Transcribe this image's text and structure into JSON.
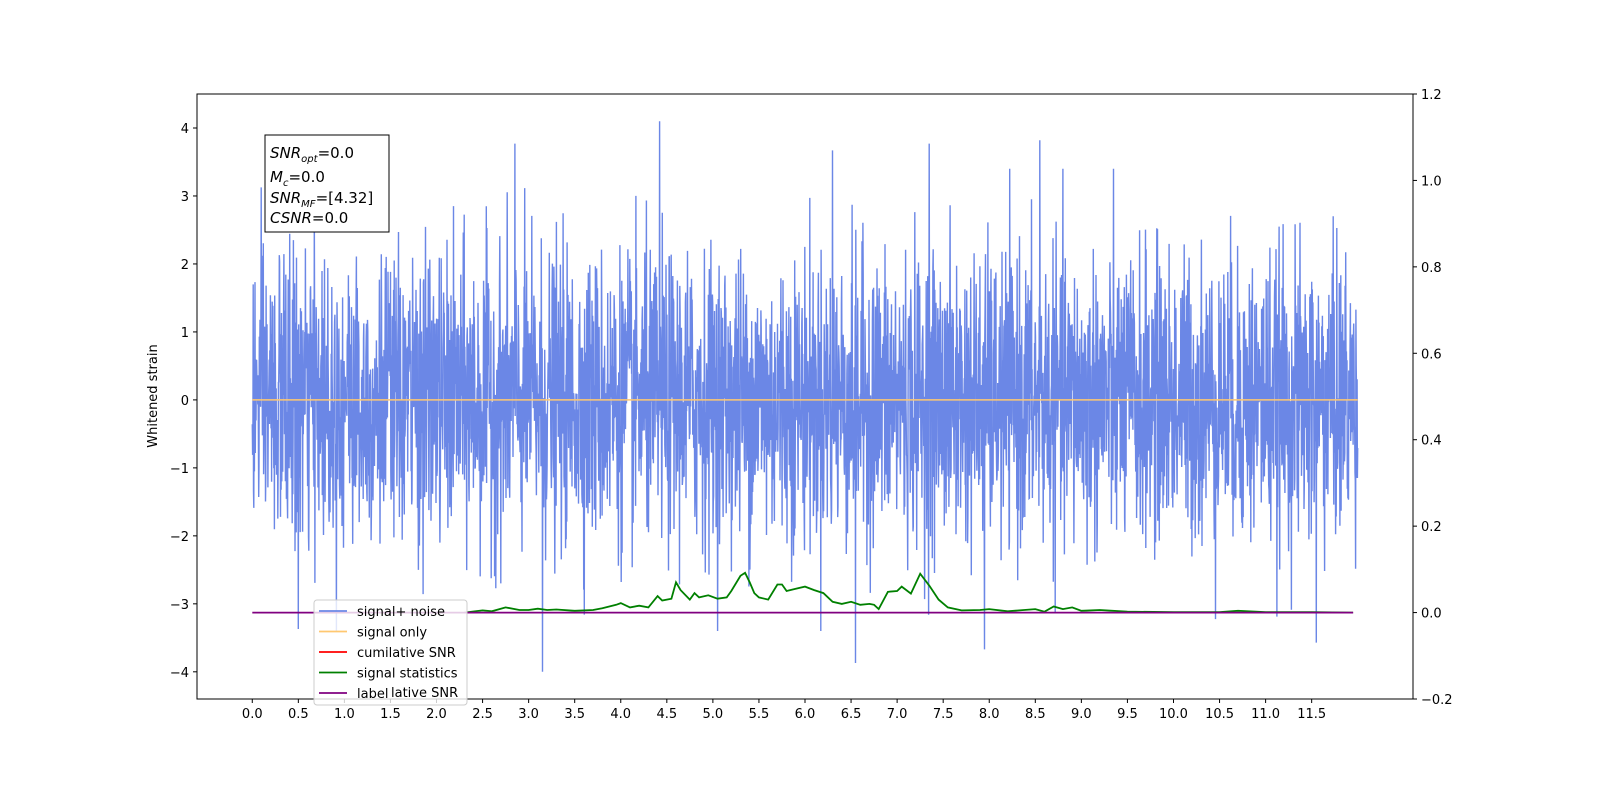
{
  "chart_data": {
    "type": "line",
    "ylabel": "Whitened strain",
    "xlabel": "",
    "xlim": [
      -0.6,
      12.6
    ],
    "ylim": [
      -4.4,
      4.5
    ],
    "y2lim": [
      -0.2,
      1.2
    ],
    "x_ticks": [
      "0.0",
      "0.5",
      "1.0",
      "1.5",
      "2.0",
      "2.5",
      "3.0",
      "3.5",
      "4.0",
      "4.5",
      "5.0",
      "5.5",
      "6.0",
      "6.5",
      "7.0",
      "7.5",
      "8.0",
      "8.5",
      "9.0",
      "9.5",
      "10.0",
      "10.5",
      "11.0",
      "11.5"
    ],
    "y_ticks": [
      "−4",
      "−3",
      "−2",
      "−1",
      "0",
      "1",
      "2",
      "3",
      "4"
    ],
    "y2_ticks": [
      "−0.2",
      "0.0",
      "0.2",
      "0.4",
      "0.6",
      "0.8",
      "1.0",
      "1.2"
    ],
    "annotation": {
      "snr_opt": {
        "label": "SNR",
        "sub": "opt",
        "value": "=0.0"
      },
      "m_c": {
        "label": "M",
        "sub": "c",
        "value": "=0.0"
      },
      "snr_mf": {
        "label": "SNR",
        "sub": "MF",
        "value": "=[4.32]"
      },
      "csnr": {
        "label": "CSNR",
        "sub": "",
        "value": "=0.0"
      }
    },
    "legend": {
      "placement": "lower-left",
      "entries": [
        {
          "label": "signal+ noise",
          "color": "#6b87e6"
        },
        {
          "label": "signal only",
          "color": "#ffc870"
        },
        {
          "label": "cumilative SNR",
          "color": "#ff0000"
        },
        {
          "label": "signal statistics",
          "color": "#008000"
        },
        {
          "label": "label",
          "color": "#800080"
        }
      ],
      "hidden_text": "lative SNR"
    },
    "series": [
      {
        "name": "signal+ noise",
        "axis": "left",
        "color": "#6b87e6",
        "x_range": [
          0.0,
          12.0
        ],
        "amplitude_envelope": [
          -4.0,
          4.1
        ],
        "notable_peaks": [
          {
            "x": 4.42,
            "y": 4.1
          },
          {
            "x": 2.85,
            "y": 3.77
          },
          {
            "x": 8.55,
            "y": 3.82
          },
          {
            "x": 7.35,
            "y": 3.77
          },
          {
            "x": 6.3,
            "y": 3.67
          },
          {
            "x": 3.15,
            "y": -4.0
          },
          {
            "x": 6.55,
            "y": -3.87
          },
          {
            "x": 7.95,
            "y": -3.67
          },
          {
            "x": 11.55,
            "y": -3.57
          },
          {
            "x": 0.5,
            "y": -3.37
          }
        ]
      },
      {
        "name": "signal only",
        "axis": "left",
        "color": "#ffc870",
        "x": [
          0.0,
          12.0
        ],
        "y": [
          0.0,
          0.0
        ]
      },
      {
        "name": "signal statistics",
        "axis": "right",
        "color": "#008000",
        "x": [
          2.3,
          2.5,
          2.6,
          2.75,
          2.9,
          3.0,
          3.1,
          3.2,
          3.3,
          3.5,
          3.7,
          3.8,
          3.95,
          4.0,
          4.1,
          4.2,
          4.3,
          4.4,
          4.45,
          4.55,
          4.6,
          4.65,
          4.75,
          4.8,
          4.85,
          4.95,
          5.05,
          5.15,
          5.2,
          5.3,
          5.35,
          5.4,
          5.45,
          5.5,
          5.6,
          5.7,
          5.75,
          5.8,
          5.9,
          6.0,
          6.1,
          6.2,
          6.3,
          6.4,
          6.5,
          6.6,
          6.7,
          6.75,
          6.8,
          6.9,
          7.0,
          7.05,
          7.15,
          7.25,
          7.35,
          7.45,
          7.55,
          7.7,
          7.9,
          8.0,
          8.2,
          8.5,
          8.6,
          8.7,
          8.8,
          8.9,
          9.0,
          9.2,
          9.5,
          10.0,
          10.5,
          10.7,
          11.0,
          11.5,
          11.95
        ],
        "y": [
          0.0,
          0.005,
          0.003,
          0.012,
          0.006,
          0.006,
          0.009,
          0.006,
          0.007,
          0.004,
          0.006,
          0.01,
          0.018,
          0.022,
          0.012,
          0.016,
          0.012,
          0.038,
          0.028,
          0.032,
          0.07,
          0.052,
          0.03,
          0.045,
          0.035,
          0.04,
          0.032,
          0.035,
          0.05,
          0.085,
          0.092,
          0.07,
          0.045,
          0.035,
          0.03,
          0.065,
          0.065,
          0.05,
          0.055,
          0.06,
          0.052,
          0.045,
          0.025,
          0.02,
          0.025,
          0.018,
          0.02,
          0.018,
          0.008,
          0.048,
          0.05,
          0.06,
          0.044,
          0.09,
          0.062,
          0.03,
          0.012,
          0.005,
          0.006,
          0.008,
          0.003,
          0.008,
          0.002,
          0.014,
          0.008,
          0.012,
          0.004,
          0.006,
          0.002,
          0.001,
          0.001,
          0.004,
          0.001,
          0.001,
          0.0
        ]
      },
      {
        "name": "label",
        "axis": "right",
        "color": "#800080",
        "x": [
          0.0,
          11.95
        ],
        "y": [
          0.0,
          0.0
        ]
      }
    ]
  }
}
